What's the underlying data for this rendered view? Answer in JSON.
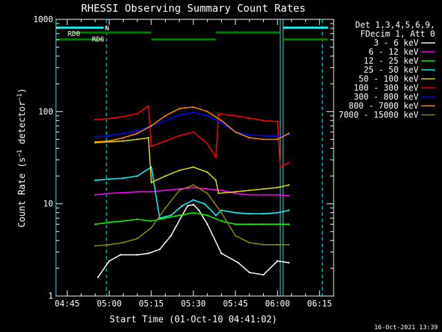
{
  "chart_data": {
    "type": "line",
    "title": "RHESSI Observing Summary Count Rates",
    "xlabel": "Start Time (01-Oct-10 04:41:02)",
    "ylabel": "Count Rate (s⁻¹ detector⁻¹)",
    "ylabel_main": "Count Rate (s",
    "ylabel_sup1": "−1",
    "ylabel_mid": " detector",
    "ylabel_sup2": "−1",
    "ylabel_end": ")",
    "yscale": "log",
    "ylim": [
      1,
      1000
    ],
    "xlim": [
      "04:41",
      "06:20"
    ],
    "x_ticks": [
      "04:45",
      "05:00",
      "05:15",
      "05:30",
      "05:45",
      "06:00",
      "06:15"
    ],
    "y_ticks": [
      "1",
      "10",
      "100",
      "1000"
    ],
    "legend_header": [
      "Det 1,3,4,5,6,9,",
      "FDecim 1, Att 0"
    ],
    "series": [
      {
        "name": "3 - 6 keV",
        "color": "#ffffff",
        "x": [
          "04:56",
          "05:00",
          "05:04",
          "05:10",
          "05:14",
          "05:18",
          "05:22",
          "05:26",
          "05:28",
          "05:30",
          "05:32",
          "05:35",
          "05:40",
          "05:46",
          "05:50",
          "05:55",
          "06:00",
          "06:04"
        ],
        "y": [
          1.6,
          2.4,
          2.8,
          2.8,
          2.9,
          3.2,
          4.5,
          7.5,
          9.5,
          9.8,
          8.5,
          6.0,
          2.9,
          2.3,
          1.8,
          1.7,
          2.4,
          2.3
        ]
      },
      {
        "name": "6 - 12 keV",
        "color": "#ff00ff",
        "x": [
          "04:55",
          "05:00",
          "05:05",
          "05:10",
          "05:15",
          "05:20",
          "05:25",
          "05:30",
          "05:35",
          "05:40",
          "05:45",
          "05:50",
          "05:55",
          "06:00",
          "06:04"
        ],
        "y": [
          12.5,
          13.0,
          13.2,
          13.5,
          13.5,
          14.0,
          14.5,
          15.0,
          14.5,
          14.0,
          13.0,
          12.5,
          12.5,
          12.5,
          12.2
        ]
      },
      {
        "name": "12 - 25 keV",
        "color": "#00ff00",
        "x": [
          "04:55",
          "05:00",
          "05:05",
          "05:10",
          "05:15",
          "05:20",
          "05:25",
          "05:30",
          "05:35",
          "05:40",
          "05:45",
          "05:50",
          "05:55",
          "06:00",
          "06:04"
        ],
        "y": [
          6.0,
          6.3,
          6.5,
          6.8,
          6.5,
          7.0,
          7.5,
          8.0,
          7.5,
          6.5,
          6.0,
          6.0,
          6.0,
          6.0,
          6.0
        ]
      },
      {
        "name": "25 - 50 keV",
        "color": "#00ffff",
        "x": [
          "04:55",
          "05:00",
          "05:05",
          "05:10",
          "05:15",
          "05:18",
          "05:22",
          "05:26",
          "05:30",
          "05:34",
          "05:38",
          "05:40",
          "05:45",
          "05:50",
          "05:55",
          "06:00",
          "06:04"
        ],
        "y": [
          18.0,
          18.5,
          19.0,
          20.0,
          25.0,
          7.0,
          7.5,
          9.5,
          11.0,
          10.0,
          7.5,
          8.5,
          8.0,
          7.8,
          7.8,
          8.0,
          8.5
        ]
      },
      {
        "name": "50 - 100 keV",
        "color": "#dddd00",
        "x": [
          "04:55",
          "05:00",
          "05:05",
          "05:10",
          "05:14",
          "05:15",
          "05:20",
          "05:25",
          "05:30",
          "05:35",
          "05:38",
          "05:39",
          "05:45",
          "05:50",
          "05:55",
          "06:00",
          "06:04"
        ],
        "y": [
          46.0,
          47.0,
          48.0,
          50.0,
          52.0,
          17.0,
          20.0,
          23.0,
          25.0,
          22.0,
          18.0,
          13.0,
          13.5,
          14.0,
          14.5,
          15.0,
          16.0
        ]
      },
      {
        "name": "100 - 300 keV",
        "color": "#ff0000",
        "x": [
          "04:55",
          "05:00",
          "05:05",
          "05:10",
          "05:14",
          "05:15",
          "05:20",
          "05:25",
          "05:30",
          "05:35",
          "05:38",
          "05:39",
          "05:45",
          "05:50",
          "05:55",
          "06:00",
          "06:01",
          "06:04"
        ],
        "y": [
          82.0,
          84.0,
          88.0,
          95.0,
          115.0,
          42.0,
          48.0,
          55.0,
          60.0,
          45.0,
          32.0,
          95.0,
          90.0,
          85.0,
          80.0,
          78.0,
          25.0,
          28.0
        ]
      },
      {
        "name": "300 - 800 keV",
        "color": "#0000ff",
        "x": [
          "04:55",
          "05:00",
          "05:05",
          "05:10",
          "05:15",
          "05:20",
          "05:25",
          "05:30",
          "05:35",
          "05:40",
          "05:45",
          "05:50",
          "05:55",
          "06:00",
          "06:04"
        ],
        "y": [
          53.0,
          55.0,
          58.0,
          62.0,
          70.0,
          80.0,
          92.0,
          98.0,
          90.0,
          75.0,
          60.0,
          56.0,
          55.0,
          54.0,
          56.0
        ]
      },
      {
        "name": "800 - 7000 keV",
        "color": "#ff8c00",
        "x": [
          "04:55",
          "05:00",
          "05:05",
          "05:10",
          "05:15",
          "05:20",
          "05:25",
          "05:30",
          "05:35",
          "05:40",
          "05:45",
          "05:50",
          "05:55",
          "06:00",
          "06:04"
        ],
        "y": [
          47.0,
          48.0,
          52.0,
          58.0,
          70.0,
          90.0,
          108.0,
          112.0,
          100.0,
          80.0,
          60.0,
          52.0,
          50.0,
          50.0,
          58.0
        ]
      },
      {
        "name": "7000 - 15000 keV",
        "color": "#8b8b00",
        "x": [
          "04:55",
          "05:00",
          "05:05",
          "05:10",
          "05:15",
          "05:20",
          "05:25",
          "05:30",
          "05:35",
          "05:40",
          "05:45",
          "05:50",
          "05:55",
          "06:00",
          "06:04"
        ],
        "y": [
          3.5,
          3.6,
          3.8,
          4.2,
          5.5,
          9.0,
          14.0,
          16.0,
          13.0,
          8.0,
          4.5,
          3.8,
          3.6,
          3.6,
          3.6
        ]
      }
    ],
    "annotations": [
      {
        "label": "N",
        "color": "#00ffff"
      },
      {
        "label": "RD0",
        "color": "#00aa00"
      },
      {
        "label": "RD6",
        "color": "#00aa00"
      }
    ],
    "footer": "16-Oct-2021 13:39"
  }
}
